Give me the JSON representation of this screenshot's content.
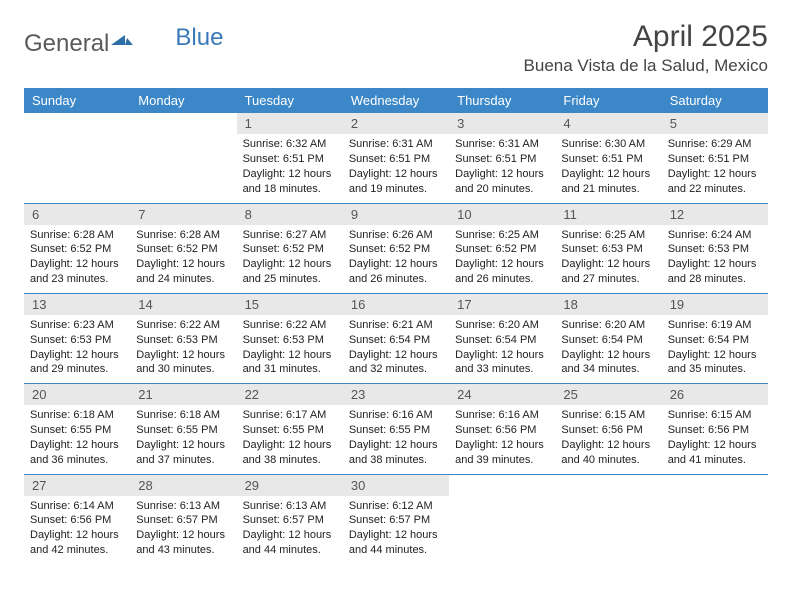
{
  "logo": {
    "text1": "General",
    "text2": "Blue"
  },
  "header": {
    "title": "April 2025",
    "location": "Buena Vista de la Salud, Mexico"
  },
  "colors": {
    "header_bg": "#3b87c8",
    "header_text": "#ffffff",
    "daynum_bg": "#e8e8e8",
    "daynum_text": "#555555",
    "body_text": "#222222",
    "rule": "#3b87c8"
  },
  "typography": {
    "title_fontsize": 30,
    "location_fontsize": 17,
    "dayheader_fontsize": 13,
    "daynum_fontsize": 13,
    "cell_fontsize": 11
  },
  "calendar": {
    "type": "table",
    "columns": [
      "Sunday",
      "Monday",
      "Tuesday",
      "Wednesday",
      "Thursday",
      "Friday",
      "Saturday"
    ],
    "weeks": [
      [
        null,
        null,
        {
          "n": "1",
          "sr": "6:32 AM",
          "ss": "6:51 PM",
          "dl": "12 hours and 18 minutes."
        },
        {
          "n": "2",
          "sr": "6:31 AM",
          "ss": "6:51 PM",
          "dl": "12 hours and 19 minutes."
        },
        {
          "n": "3",
          "sr": "6:31 AM",
          "ss": "6:51 PM",
          "dl": "12 hours and 20 minutes."
        },
        {
          "n": "4",
          "sr": "6:30 AM",
          "ss": "6:51 PM",
          "dl": "12 hours and 21 minutes."
        },
        {
          "n": "5",
          "sr": "6:29 AM",
          "ss": "6:51 PM",
          "dl": "12 hours and 22 minutes."
        }
      ],
      [
        {
          "n": "6",
          "sr": "6:28 AM",
          "ss": "6:52 PM",
          "dl": "12 hours and 23 minutes."
        },
        {
          "n": "7",
          "sr": "6:28 AM",
          "ss": "6:52 PM",
          "dl": "12 hours and 24 minutes."
        },
        {
          "n": "8",
          "sr": "6:27 AM",
          "ss": "6:52 PM",
          "dl": "12 hours and 25 minutes."
        },
        {
          "n": "9",
          "sr": "6:26 AM",
          "ss": "6:52 PM",
          "dl": "12 hours and 26 minutes."
        },
        {
          "n": "10",
          "sr": "6:25 AM",
          "ss": "6:52 PM",
          "dl": "12 hours and 26 minutes."
        },
        {
          "n": "11",
          "sr": "6:25 AM",
          "ss": "6:53 PM",
          "dl": "12 hours and 27 minutes."
        },
        {
          "n": "12",
          "sr": "6:24 AM",
          "ss": "6:53 PM",
          "dl": "12 hours and 28 minutes."
        }
      ],
      [
        {
          "n": "13",
          "sr": "6:23 AM",
          "ss": "6:53 PM",
          "dl": "12 hours and 29 minutes."
        },
        {
          "n": "14",
          "sr": "6:22 AM",
          "ss": "6:53 PM",
          "dl": "12 hours and 30 minutes."
        },
        {
          "n": "15",
          "sr": "6:22 AM",
          "ss": "6:53 PM",
          "dl": "12 hours and 31 minutes."
        },
        {
          "n": "16",
          "sr": "6:21 AM",
          "ss": "6:54 PM",
          "dl": "12 hours and 32 minutes."
        },
        {
          "n": "17",
          "sr": "6:20 AM",
          "ss": "6:54 PM",
          "dl": "12 hours and 33 minutes."
        },
        {
          "n": "18",
          "sr": "6:20 AM",
          "ss": "6:54 PM",
          "dl": "12 hours and 34 minutes."
        },
        {
          "n": "19",
          "sr": "6:19 AM",
          "ss": "6:54 PM",
          "dl": "12 hours and 35 minutes."
        }
      ],
      [
        {
          "n": "20",
          "sr": "6:18 AM",
          "ss": "6:55 PM",
          "dl": "12 hours and 36 minutes."
        },
        {
          "n": "21",
          "sr": "6:18 AM",
          "ss": "6:55 PM",
          "dl": "12 hours and 37 minutes."
        },
        {
          "n": "22",
          "sr": "6:17 AM",
          "ss": "6:55 PM",
          "dl": "12 hours and 38 minutes."
        },
        {
          "n": "23",
          "sr": "6:16 AM",
          "ss": "6:55 PM",
          "dl": "12 hours and 38 minutes."
        },
        {
          "n": "24",
          "sr": "6:16 AM",
          "ss": "6:56 PM",
          "dl": "12 hours and 39 minutes."
        },
        {
          "n": "25",
          "sr": "6:15 AM",
          "ss": "6:56 PM",
          "dl": "12 hours and 40 minutes."
        },
        {
          "n": "26",
          "sr": "6:15 AM",
          "ss": "6:56 PM",
          "dl": "12 hours and 41 minutes."
        }
      ],
      [
        {
          "n": "27",
          "sr": "6:14 AM",
          "ss": "6:56 PM",
          "dl": "12 hours and 42 minutes."
        },
        {
          "n": "28",
          "sr": "6:13 AM",
          "ss": "6:57 PM",
          "dl": "12 hours and 43 minutes."
        },
        {
          "n": "29",
          "sr": "6:13 AM",
          "ss": "6:57 PM",
          "dl": "12 hours and 44 minutes."
        },
        {
          "n": "30",
          "sr": "6:12 AM",
          "ss": "6:57 PM",
          "dl": "12 hours and 44 minutes."
        },
        null,
        null,
        null
      ]
    ],
    "labels": {
      "sunrise": "Sunrise:",
      "sunset": "Sunset:",
      "daylight": "Daylight:"
    }
  }
}
